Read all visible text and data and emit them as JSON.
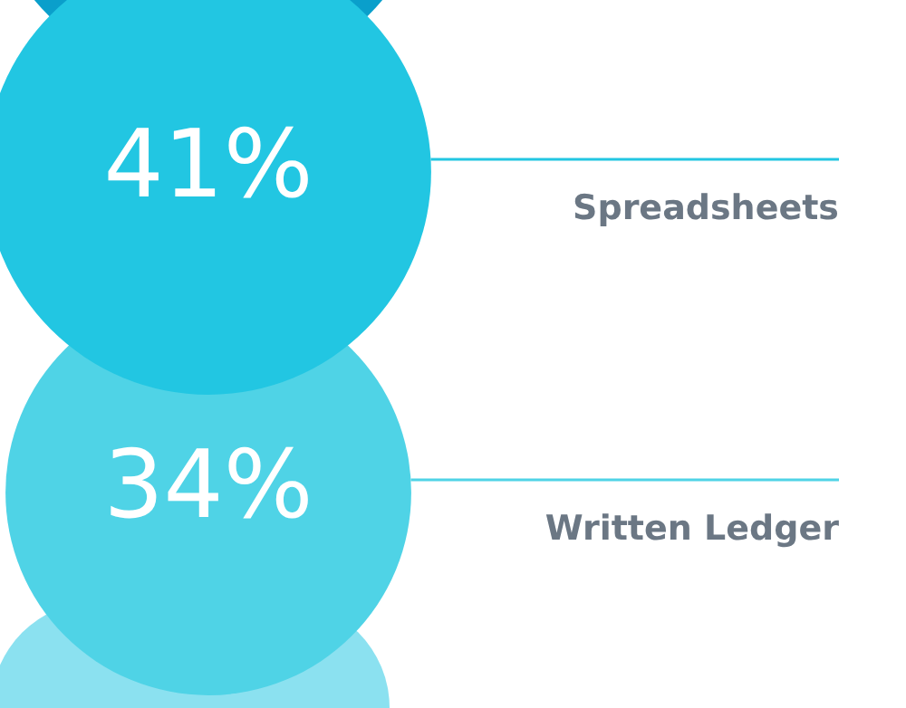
{
  "chart_data": {
    "type": "other",
    "categories": [
      "Spreadsheets",
      "Written Ledger"
    ],
    "values": [
      41,
      34
    ],
    "colors": [
      "#22c6e2",
      "#4fd3e6"
    ],
    "value_labels": [
      "41%",
      "34%"
    ]
  }
}
